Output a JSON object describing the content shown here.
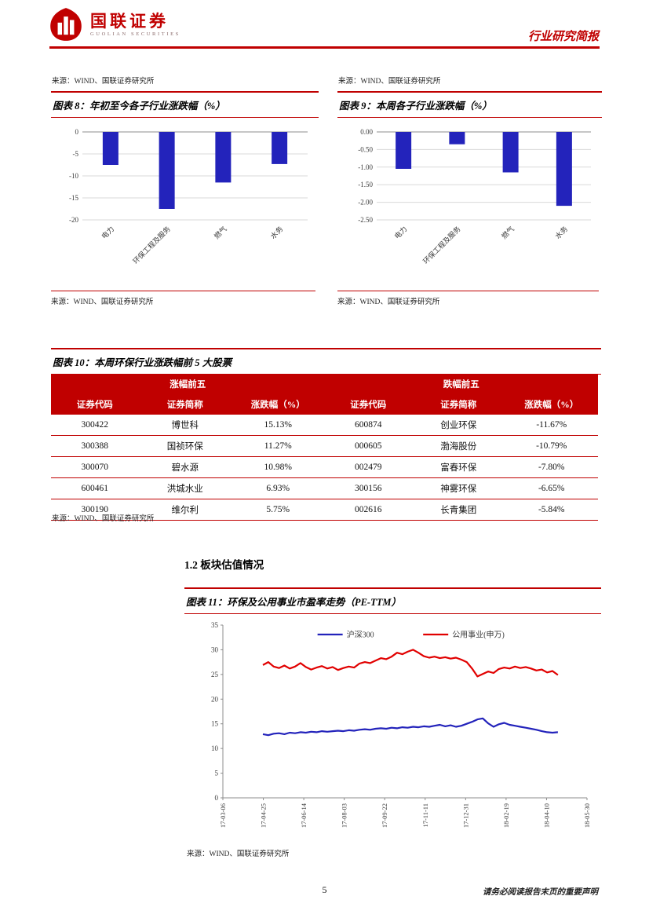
{
  "header": {
    "logo_cn": "国联证券",
    "logo_en": "GUOLIAN SECURITIES",
    "doc_type": "行业研究简报"
  },
  "top_sources": {
    "left": "来源：WIND、国联证券研究所",
    "right": "来源：WIND、国联证券研究所"
  },
  "figures": {
    "fig8": {
      "title": "图表 8：年初至今各子行业涨跌幅（%）",
      "source": "来源：WIND、国联证券研究所"
    },
    "fig9": {
      "title": "图表 9：本周各子行业涨跌幅（%）",
      "source": "来源：WIND、国联证券研究所"
    },
    "fig10": {
      "title": "图表 10：本周环保行业涨跌幅前 5 大股票",
      "source": "来源：WIND、国联证券研究所"
    },
    "fig11": {
      "title": "图表 11：环保及公用事业市盈率走势（PE-TTM）",
      "source": "来源：WIND、国联证券研究所"
    }
  },
  "section": {
    "heading": "1.2 板块估值情况"
  },
  "table10": {
    "group_headers": [
      "涨幅前五",
      "跌幅前五"
    ],
    "col_headers": [
      "证券代码",
      "证券简称",
      "涨跌幅（%）",
      "证券代码",
      "证券简称",
      "涨跌幅（%）"
    ],
    "rows": [
      [
        "300422",
        "博世科",
        "15.13%",
        "600874",
        "创业环保",
        "-11.67%"
      ],
      [
        "300388",
        "国祯环保",
        "11.27%",
        "000605",
        "渤海股份",
        "-10.79%"
      ],
      [
        "300070",
        "碧水源",
        "10.98%",
        "002479",
        "富春环保",
        "-7.80%"
      ],
      [
        "600461",
        "洪城水业",
        "6.93%",
        "300156",
        "神雾环保",
        "-6.65%"
      ],
      [
        "300190",
        "维尔利",
        "5.75%",
        "002616",
        "长青集团",
        "-5.84%"
      ]
    ]
  },
  "footer": {
    "page_number": "5",
    "disclaimer": "请务必阅读报告末页的重要声明"
  },
  "colors": {
    "accent_red": "#c00000",
    "bar_blue": "#2323bb",
    "line_blue": "#2323bb",
    "line_red": "#e10000"
  },
  "chart_data": [
    {
      "id": "fig8",
      "type": "bar",
      "title": "年初至今各子行业涨跌幅（%）",
      "categories": [
        "电力",
        "环保工程及服务",
        "燃气",
        "水务"
      ],
      "values": [
        -7.5,
        -17.5,
        -11.5,
        -7.3
      ],
      "ylim": [
        -20,
        0
      ],
      "yticks": [
        "0",
        "-5",
        "-10",
        "-15",
        "-20"
      ],
      "bar_color": "#2323bb",
      "grid": true,
      "xlabel": "",
      "ylabel": ""
    },
    {
      "id": "fig9",
      "type": "bar",
      "title": "本周各子行业涨跌幅（%）",
      "categories": [
        "电力",
        "环保工程及服务",
        "燃气",
        "水务"
      ],
      "values": [
        -1.05,
        -0.35,
        -1.15,
        -2.1
      ],
      "ylim": [
        -2.5,
        0
      ],
      "yticks": [
        "0.00",
        "-0.50",
        "-1.00",
        "-1.50",
        "-2.00",
        "-2.50"
      ],
      "bar_color": "#2323bb",
      "grid": true,
      "xlabel": "",
      "ylabel": ""
    },
    {
      "id": "fig11",
      "type": "line",
      "title": "环保及公用事业市盈率走势（PE-TTM）",
      "ylim": [
        0,
        35
      ],
      "yticks": [
        "35",
        "30",
        "25",
        "20",
        "15",
        "10",
        "5",
        "0"
      ],
      "x_ticks": [
        "17-03-06",
        "17-04-25",
        "17-06-14",
        "17-08-03",
        "17-09-22",
        "17-11-11",
        "17-12-31",
        "18-02-19",
        "18-04-10",
        "18-05-30"
      ],
      "legend_position": "top",
      "grid": false,
      "series": [
        {
          "name": "沪深300",
          "color": "#2323bb",
          "x_start": 0.11,
          "x_end": 0.92,
          "values": [
            12.9,
            12.7,
            13.0,
            13.1,
            12.9,
            13.2,
            13.1,
            13.3,
            13.2,
            13.4,
            13.3,
            13.5,
            13.4,
            13.5,
            13.6,
            13.5,
            13.7,
            13.6,
            13.8,
            13.9,
            13.8,
            14.0,
            14.1,
            14.0,
            14.2,
            14.1,
            14.3,
            14.2,
            14.4,
            14.3,
            14.5,
            14.4,
            14.6,
            14.8,
            14.5,
            14.7,
            14.4,
            14.6,
            15.0,
            15.4,
            15.9,
            16.1,
            15.1,
            14.4,
            14.9,
            15.2,
            14.8,
            14.6,
            14.4,
            14.2,
            14.0,
            13.8,
            13.5,
            13.3,
            13.2,
            13.3
          ]
        },
        {
          "name": "公用事业(申万)",
          "color": "#e10000",
          "x_start": 0.11,
          "x_end": 0.92,
          "values": [
            26.9,
            27.5,
            26.6,
            26.3,
            26.8,
            26.2,
            26.6,
            27.3,
            26.5,
            26.0,
            26.4,
            26.7,
            26.2,
            26.5,
            25.9,
            26.3,
            26.6,
            26.4,
            27.2,
            27.5,
            27.3,
            27.8,
            28.3,
            28.1,
            28.6,
            29.4,
            29.1,
            29.6,
            30.0,
            29.4,
            28.7,
            28.4,
            28.6,
            28.3,
            28.5,
            28.2,
            28.4,
            28.0,
            27.5,
            26.2,
            24.6,
            25.1,
            25.6,
            25.3,
            26.1,
            26.4,
            26.2,
            26.6,
            26.3,
            26.5,
            26.2,
            25.8,
            26.0,
            25.4,
            25.7,
            24.9
          ]
        }
      ]
    }
  ]
}
